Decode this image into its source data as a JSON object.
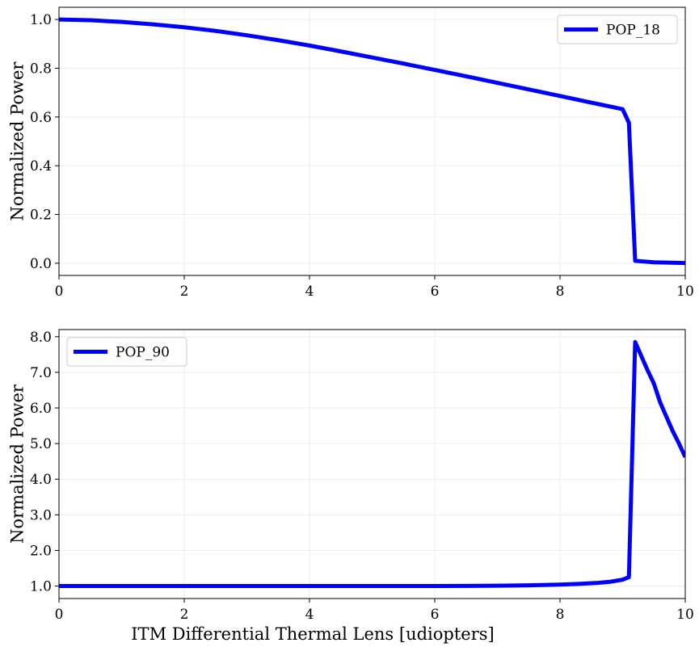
{
  "figure": {
    "xlabel": "ITM Differential Thermal Lens  [udiopters]"
  },
  "chart_data": [
    {
      "type": "line",
      "title": "",
      "xlabel": "",
      "ylabel": "Normalized Power",
      "xlim": [
        0,
        10
      ],
      "ylim": [
        -0.05,
        1.05
      ],
      "xticks": [
        0,
        2,
        4,
        6,
        8,
        10
      ],
      "xtick_labels": [
        "0",
        "2",
        "4",
        "6",
        "8",
        "10"
      ],
      "yticks": [
        0.0,
        0.2,
        0.4,
        0.6,
        0.8,
        1.0
      ],
      "ytick_labels": [
        "0.0",
        "0.2",
        "0.4",
        "0.6",
        "0.8",
        "1.0"
      ],
      "grid": true,
      "legend": "top-right",
      "series": [
        {
          "name": "POP_18",
          "color": "#0000ff",
          "x": [
            0,
            0.5,
            1,
            1.5,
            2,
            2.5,
            3,
            3.5,
            4,
            4.5,
            5,
            5.5,
            6,
            6.5,
            7,
            7.5,
            8,
            8.5,
            9,
            9.1,
            9.2,
            9.5,
            10
          ],
          "y": [
            1.0,
            0.997,
            0.99,
            0.98,
            0.968,
            0.953,
            0.935,
            0.915,
            0.893,
            0.869,
            0.844,
            0.819,
            0.793,
            0.767,
            0.74,
            0.713,
            0.686,
            0.659,
            0.632,
            0.576,
            0.01,
            0.004,
            0.001
          ]
        }
      ]
    },
    {
      "type": "line",
      "title": "",
      "xlabel": "ITM Differential Thermal Lens  [udiopters]",
      "ylabel": "Normalized Power",
      "xlim": [
        0,
        10
      ],
      "ylim": [
        0.65,
        8.2
      ],
      "xticks": [
        0,
        2,
        4,
        6,
        8,
        10
      ],
      "xtick_labels": [
        "0",
        "2",
        "4",
        "6",
        "8",
        "10"
      ],
      "yticks": [
        1.0,
        2.0,
        3.0,
        4.0,
        5.0,
        6.0,
        7.0,
        8.0
      ],
      "ytick_labels": [
        "1.0",
        "2.0",
        "3.0",
        "4.0",
        "5.0",
        "6.0",
        "7.0",
        "8.0"
      ],
      "grid": true,
      "legend": "top-left",
      "series": [
        {
          "name": "POP_90",
          "color": "#0000ff",
          "x": [
            0,
            1,
            2,
            3,
            4,
            5,
            6,
            6.5,
            7,
            7.5,
            8,
            8.3,
            8.6,
            8.8,
            9.0,
            9.1,
            9.2,
            9.3,
            9.4,
            9.5,
            9.6,
            9.7,
            9.8,
            9.9,
            10
          ],
          "y": [
            1.0,
            1.0,
            1.0,
            1.0,
            1.0,
            1.0,
            1.002,
            1.005,
            1.01,
            1.02,
            1.04,
            1.06,
            1.09,
            1.12,
            1.18,
            1.25,
            7.85,
            7.45,
            7.05,
            6.68,
            6.15,
            5.75,
            5.35,
            5.0,
            4.62
          ]
        }
      ]
    }
  ]
}
